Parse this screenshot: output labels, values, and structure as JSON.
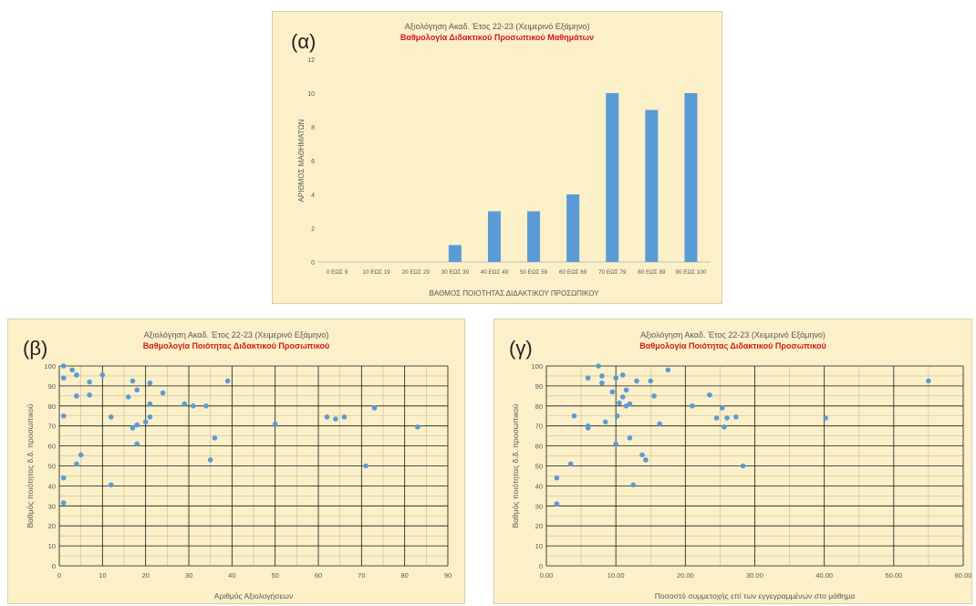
{
  "chart_data": [
    {
      "id": "a",
      "type": "bar",
      "panel_label": "(α)",
      "title": "Αξιολόγηση Ακαδ. Έτος 22-23 (Χειμερινό Εξάμηνο)",
      "subtitle": "Βαθμολογία Διδακτικού Προσωπικού Μαθημάτων",
      "xlabel": "ΒΑΘΜΟΣ ΠΟΙΟΤΗΤΑΣ ΔΙΔΑΚΤΙΚΟΥ ΠΡΟΣΩΠΙΚΟΥ",
      "ylabel": "ΑΡΙΘΜΟΣ ΜΑΘΗΜΑΤΩΝ",
      "categories": [
        "0 ΕΩΣ 9",
        "10 ΕΩΣ 19",
        "20 ΕΩΣ 29",
        "30 ΕΩΣ 39",
        "40 ΕΩΣ 49",
        "50 ΕΩΣ 59",
        "60 ΕΩΣ 69",
        "70 ΕΩΣ 79",
        "80 ΕΩΣ 89",
        "90 ΕΩΣ 100"
      ],
      "values": [
        0,
        0,
        0,
        1,
        3,
        3,
        4,
        10,
        9,
        10
      ],
      "ylim": [
        0,
        12
      ],
      "yticks": [
        0,
        2,
        4,
        6,
        8,
        10,
        12
      ],
      "grid": false,
      "color": "#5b9bd5"
    },
    {
      "id": "b",
      "type": "scatter",
      "panel_label": "(β)",
      "title": "Αξιολόγηση Ακαδ. Έτος 22-23 (Χειμερινό Εξάμηνο)",
      "subtitle": "Βαθμολογία Ποιότητας  Διδακτικού Προσωπικού",
      "xlabel": "Αριθμός Αξιολογήσεων",
      "ylabel": "Βαθμός ποιότητας δ.δ. προσωπικού",
      "xlim": [
        0,
        90
      ],
      "xticks": [
        0,
        10,
        20,
        30,
        40,
        50,
        60,
        70,
        80,
        90
      ],
      "xtick_labels": [
        "0",
        "10",
        "20",
        "30",
        "40",
        "50",
        "60",
        "70",
        "80",
        "90"
      ],
      "ylim": [
        0,
        100
      ],
      "yticks": [
        0,
        10,
        20,
        30,
        40,
        50,
        60,
        70,
        80,
        90,
        100
      ],
      "grid": true,
      "color": "#5b9bd5",
      "points": [
        [
          1,
          100
        ],
        [
          1,
          94
        ],
        [
          1,
          75
        ],
        [
          1,
          44
        ],
        [
          1,
          31.5
        ],
        [
          3,
          98
        ],
        [
          4,
          95.5
        ],
        [
          4,
          85
        ],
        [
          4,
          51
        ],
        [
          5,
          55.5
        ],
        [
          7,
          92
        ],
        [
          7,
          85.5
        ],
        [
          10,
          95.5
        ],
        [
          12,
          74.5
        ],
        [
          12,
          40.5
        ],
        [
          16,
          84.5
        ],
        [
          17,
          92.5
        ],
        [
          17,
          69
        ],
        [
          18,
          88
        ],
        [
          18,
          70.5
        ],
        [
          18,
          61
        ],
        [
          20,
          72
        ],
        [
          21,
          91.5
        ],
        [
          21,
          81
        ],
        [
          21,
          74.5
        ],
        [
          24,
          86.5
        ],
        [
          29,
          81
        ],
        [
          31,
          80
        ],
        [
          34,
          80
        ],
        [
          35,
          53
        ],
        [
          36,
          64
        ],
        [
          39,
          92.5
        ],
        [
          50,
          71
        ],
        [
          62,
          74.5
        ],
        [
          64,
          73.5
        ],
        [
          66,
          74.5
        ],
        [
          71,
          50
        ],
        [
          73,
          79
        ],
        [
          83,
          69.5
        ]
      ]
    },
    {
      "id": "c",
      "type": "scatter",
      "panel_label": "(γ)",
      "title": "Αξιολόγηση Ακαδ. Έτος 22-23 (Χειμερινό Εξάμηνο)",
      "subtitle": "Βαθμολογία Ποιότητας  Διδακτικού Προσωπικού",
      "xlabel": "Ποσοστό συμμετοχής επί των εγγεγραμμένων στο μάθημα",
      "ylabel": "Βαθμός ποιότητας δ.δ. προσωπικού",
      "xlim": [
        0,
        60
      ],
      "xticks": [
        0,
        10,
        20,
        30,
        40,
        50,
        60
      ],
      "xtick_labels": [
        "0.00",
        "10.00",
        "20.00",
        "30.00",
        "40.00",
        "50.00",
        "60.00"
      ],
      "ylim": [
        0,
        100
      ],
      "yticks": [
        0,
        10,
        20,
        30,
        40,
        50,
        60,
        70,
        80,
        90,
        100
      ],
      "grid": true,
      "color": "#5b9bd5",
      "points": [
        [
          1.5,
          44
        ],
        [
          1.5,
          31
        ],
        [
          3.5,
          51
        ],
        [
          4,
          75
        ],
        [
          6,
          94
        ],
        [
          6,
          70
        ],
        [
          6,
          69
        ],
        [
          7.5,
          100
        ],
        [
          8,
          95
        ],
        [
          8,
          91.5
        ],
        [
          8.5,
          72
        ],
        [
          9.5,
          87
        ],
        [
          10,
          61
        ],
        [
          10,
          94
        ],
        [
          10.2,
          75
        ],
        [
          10.5,
          81.5
        ],
        [
          11,
          84.5
        ],
        [
          11,
          95.5
        ],
        [
          11.5,
          88
        ],
        [
          11.5,
          80
        ],
        [
          12,
          64
        ],
        [
          12,
          81
        ],
        [
          12.5,
          40.5
        ],
        [
          13,
          92.5
        ],
        [
          13.8,
          55.5
        ],
        [
          14.3,
          53
        ],
        [
          15,
          92.5
        ],
        [
          15.5,
          85
        ],
        [
          16.3,
          71
        ],
        [
          17.5,
          98
        ],
        [
          21,
          80
        ],
        [
          23.5,
          85.5
        ],
        [
          24.5,
          74
        ],
        [
          25.3,
          79
        ],
        [
          25.6,
          69.5
        ],
        [
          26,
          74
        ],
        [
          27.3,
          74.5
        ],
        [
          28.3,
          50
        ],
        [
          40.2,
          74
        ],
        [
          55,
          92.5
        ]
      ]
    }
  ]
}
